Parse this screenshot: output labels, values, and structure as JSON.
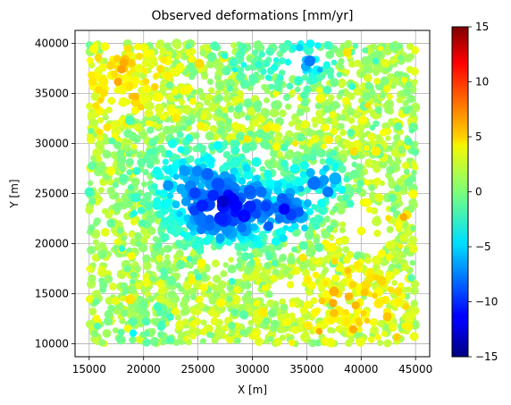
{
  "chart_data": {
    "type": "scatter",
    "title": "Observed deformations [mm/yr]",
    "xlabel": "X [m]",
    "ylabel": "Y [m]",
    "xlim": [
      13700,
      46300
    ],
    "ylim": [
      8700,
      41300
    ],
    "xticks": [
      15000,
      20000,
      25000,
      30000,
      35000,
      40000,
      45000
    ],
    "xtick_labels": [
      "15000",
      "20000",
      "25000",
      "30000",
      "35000",
      "40000",
      "45000"
    ],
    "yticks": [
      10000,
      15000,
      20000,
      25000,
      30000,
      35000,
      40000
    ],
    "ytick_labels": [
      "10000",
      "15000",
      "20000",
      "25000",
      "30000",
      "35000",
      "40000"
    ],
    "grid": true,
    "colormap": "jet",
    "colorbar": {
      "range": [
        -15,
        15
      ],
      "ticks": [
        -15,
        -10,
        -5,
        0,
        5,
        10,
        15
      ],
      "tick_labels": [
        "−15",
        "−10",
        "−5",
        "0",
        "5",
        "10",
        "15"
      ]
    },
    "points_description": "about 3000 points uniformly distributed over X 15000–45000, Y 10000–40000",
    "background_value": 1.5,
    "anomalies": [
      {
        "x": 28000,
        "y": 23500,
        "sigma_x": 3500,
        "sigma_y": 2500,
        "amplitude": -11
      },
      {
        "x": 24000,
        "y": 27000,
        "sigma_x": 3000,
        "sigma_y": 2500,
        "amplitude": -4
      },
      {
        "x": 36500,
        "y": 26500,
        "sigma_x": 1500,
        "sigma_y": 1500,
        "amplitude": -7
      },
      {
        "x": 33500,
        "y": 23000,
        "sigma_x": 1500,
        "sigma_y": 1500,
        "amplitude": -6
      },
      {
        "x": 35500,
        "y": 38500,
        "sigma_x": 1500,
        "sigma_y": 1500,
        "amplitude": -6
      },
      {
        "x": 31000,
        "y": 38000,
        "sigma_x": 2500,
        "sigma_y": 2000,
        "amplitude": -3
      },
      {
        "x": 18000,
        "y": 36000,
        "sigma_x": 3000,
        "sigma_y": 3000,
        "amplitude": 2.5
      },
      {
        "x": 39000,
        "y": 14000,
        "sigma_x": 3000,
        "sigma_y": 3000,
        "amplitude": 2.5
      },
      {
        "x": 20000,
        "y": 11500,
        "sigma_x": 2000,
        "sigma_y": 1500,
        "amplitude": -2
      }
    ],
    "gaps": [
      {
        "x": 40500,
        "y": 21500,
        "rx": 2800,
        "ry": 2500
      },
      {
        "x": 33000,
        "y": 15500,
        "rx": 1500,
        "ry": 1200
      },
      {
        "x": 26500,
        "y": 18500,
        "rx": 1200,
        "ry": 1000
      },
      {
        "x": 30500,
        "y": 28500,
        "rx": 1000,
        "ry": 1000
      }
    ]
  }
}
